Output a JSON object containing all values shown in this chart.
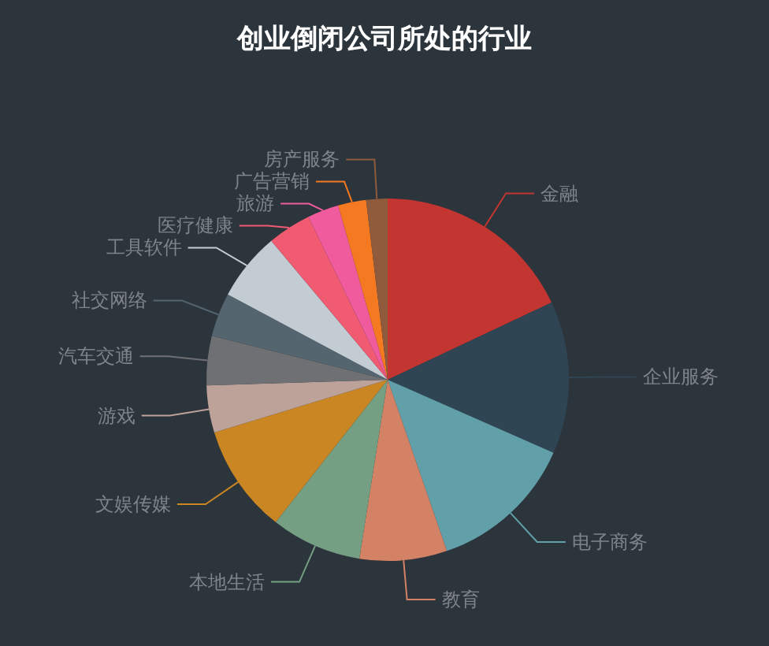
{
  "chart_data": {
    "type": "pie",
    "title": "创业倒闭公司所处的行业",
    "categories": [
      "金融",
      "企业服务",
      "电子商务",
      "教育",
      "本地生活",
      "文娱传媒",
      "游戏",
      "汽车交通",
      "社交网络",
      "工具软件",
      "医疗健康",
      "旅游",
      "广告营销",
      "房产服务"
    ],
    "values": [
      18.0,
      13.6,
      13.1,
      7.8,
      8.1,
      9.7,
      4.2,
      4.4,
      3.9,
      6.1,
      3.9,
      2.8,
      2.5,
      1.9
    ],
    "colors": [
      "#c23531",
      "#2f4554",
      "#61a0a8",
      "#d48265",
      "#749f83",
      "#ca8622",
      "#bda29a",
      "#6e7074",
      "#546570",
      "#c4ccd3",
      "#f05b72",
      "#ef5b9c",
      "#f47920",
      "#905a3d"
    ]
  }
}
